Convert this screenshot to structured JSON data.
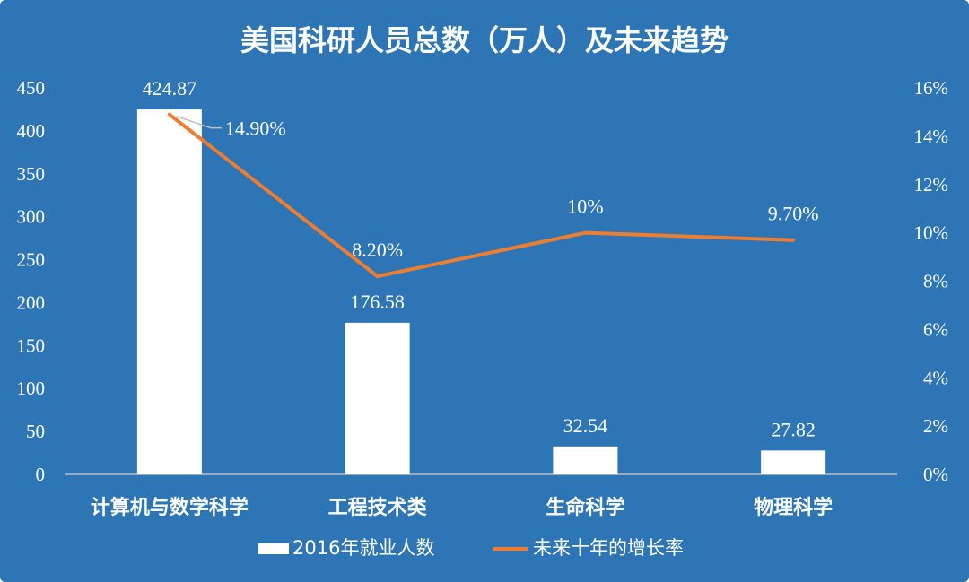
{
  "chart_data": {
    "type": "bar",
    "title": "美国科研人员总数（万人）及未来趋势",
    "categories": [
      "计算机与数学科学",
      "工程技术类",
      "生命科学",
      "物理科学"
    ],
    "series": [
      {
        "name": "2016年就业人数",
        "type": "bar",
        "axis": "left",
        "values": [
          424.87,
          176.58,
          32.54,
          27.82
        ],
        "labels": [
          "424.87",
          "176.58",
          "32.54",
          "27.82"
        ],
        "color": "#ffffff"
      },
      {
        "name": "未来十年的增长率",
        "type": "line",
        "axis": "right",
        "values": [
          14.9,
          8.2,
          10.0,
          9.7
        ],
        "labels": [
          "14.90%",
          "8.20%",
          "10%",
          "9.70%"
        ],
        "color": "#ed7d31"
      }
    ],
    "y_left": {
      "min": 0,
      "max": 450,
      "ticks": [
        0,
        50,
        100,
        150,
        200,
        250,
        300,
        350,
        400,
        450
      ],
      "tick_labels": [
        "0",
        "50",
        "100",
        "150",
        "200",
        "250",
        "300",
        "350",
        "400",
        "450"
      ]
    },
    "y_right": {
      "min": 0,
      "max": 16,
      "ticks": [
        0,
        2,
        4,
        6,
        8,
        10,
        12,
        14,
        16
      ],
      "tick_labels": [
        "0%",
        "2%",
        "4%",
        "6%",
        "8%",
        "10%",
        "12%",
        "14%",
        "16%"
      ]
    },
    "grid": false,
    "legend_position": "bottom",
    "colors": {
      "background": "#2e75b6",
      "text": "#ffffff",
      "axis": "#bfbfbf"
    }
  }
}
